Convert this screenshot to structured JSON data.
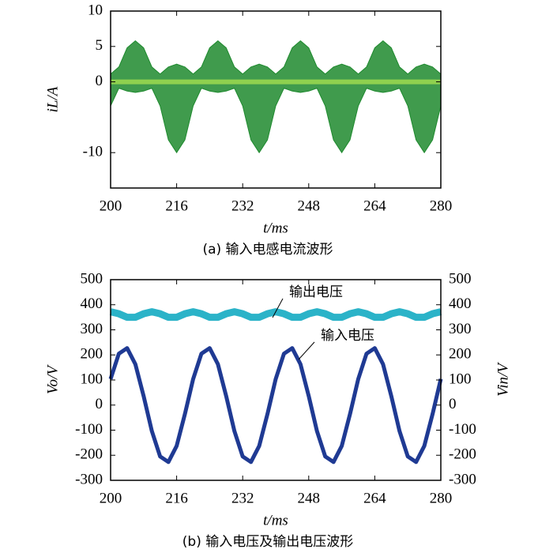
{
  "chart_data": [
    {
      "type": "area",
      "title": "(a)  输入电感电流波形",
      "xlabel": "t/ms",
      "ylabel": "iL/A",
      "x": [
        200,
        202,
        204,
        206,
        208,
        210,
        212,
        214,
        216,
        218,
        220,
        222,
        224,
        226,
        228,
        230,
        232,
        234,
        236,
        238,
        240,
        242,
        244,
        246,
        248,
        250,
        252,
        254,
        256,
        258,
        260,
        262,
        264,
        266,
        268,
        270,
        272,
        274,
        276,
        278,
        280
      ],
      "series": [
        {
          "color": "#1e8a2e",
          "values": [
            1.1,
            2.1,
            4.8,
            5.8,
            4.8,
            2.1,
            1.1,
            2.1,
            2.5,
            2.1,
            1.1,
            2.1,
            4.8,
            5.8,
            4.8,
            2.1,
            1.1,
            2.1,
            2.5,
            2.1,
            1.1,
            2.1,
            4.8,
            5.8,
            4.8,
            2.1,
            1.1,
            2.1,
            2.5,
            2.1,
            1.1,
            2.1,
            4.8,
            5.8,
            4.8,
            2.1,
            1.1,
            2.1,
            2.5,
            2.1,
            1.1
          ]
        },
        {
          "color": "#1e8a2e",
          "values": [
            -3.4,
            -0.9,
            -1.3,
            -1.5,
            -1.3,
            -0.9,
            -3.4,
            -8.2,
            -10,
            -8.2,
            -3.4,
            -0.9,
            -1.3,
            -1.5,
            -1.3,
            -0.9,
            -3.4,
            -8.2,
            -10,
            -8.2,
            -3.4,
            -0.9,
            -1.3,
            -1.5,
            -1.3,
            -0.9,
            -3.4,
            -8.2,
            -10,
            -8.2,
            -3.4,
            -0.9,
            -1.3,
            -1.5,
            -1.3,
            -0.9,
            -3.4,
            -8.2,
            -10,
            -8.2,
            -3.4
          ]
        }
      ],
      "xlim": [
        200,
        280
      ],
      "xticks": [
        200,
        216,
        232,
        248,
        264,
        280
      ],
      "ylim": [
        -15,
        10
      ],
      "yticks": [
        10,
        5,
        0,
        -10
      ]
    },
    {
      "type": "line",
      "title": "(b)  输入电压及输出电压波形",
      "xlabel": "t/ms",
      "ylabel": "Vo/V",
      "y2label": "Vin/V",
      "x": [
        200,
        202,
        204,
        206,
        208,
        210,
        212,
        214,
        216,
        218,
        220,
        222,
        224,
        226,
        228,
        230,
        232,
        234,
        236,
        238,
        240,
        242,
        244,
        246,
        248,
        250,
        252,
        254,
        256,
        258,
        260,
        262,
        264,
        266,
        268,
        270,
        272,
        274,
        276,
        278,
        280
      ],
      "series": [
        {
          "name": "输出电压",
          "color": "#2bb3c8",
          "values": [
            372,
            364,
            350,
            350,
            364,
            372,
            364,
            350,
            350,
            364,
            372,
            364,
            350,
            350,
            364,
            372,
            364,
            350,
            350,
            364,
            372,
            364,
            350,
            350,
            364,
            372,
            364,
            350,
            350,
            364,
            372,
            364,
            350,
            350,
            364,
            372,
            364,
            350,
            350,
            364,
            372
          ]
        },
        {
          "name": "输入电压",
          "color": "#1f3a93",
          "axis": "y2",
          "values": [
            104,
            205,
            227,
            163,
            36,
            -104,
            -205,
            -227,
            -163,
            -36,
            104,
            205,
            227,
            163,
            36,
            -104,
            -205,
            -227,
            -163,
            -36,
            104,
            205,
            227,
            163,
            36,
            -104,
            -205,
            -227,
            -163,
            -36,
            104,
            205,
            227,
            163,
            36,
            -104,
            -205,
            -227,
            -163,
            -36,
            104
          ]
        }
      ],
      "xlim": [
        200,
        280
      ],
      "xticks": [
        200,
        216,
        232,
        248,
        264,
        280
      ],
      "ylim": [
        -300,
        500
      ],
      "yticks": [
        500,
        400,
        300,
        200,
        100,
        0,
        -100,
        -200,
        -300
      ],
      "y2lim": [
        -300,
        500
      ],
      "y2ticks": [
        500,
        400,
        300,
        200,
        100,
        0,
        -100,
        -200,
        -300
      ]
    }
  ]
}
